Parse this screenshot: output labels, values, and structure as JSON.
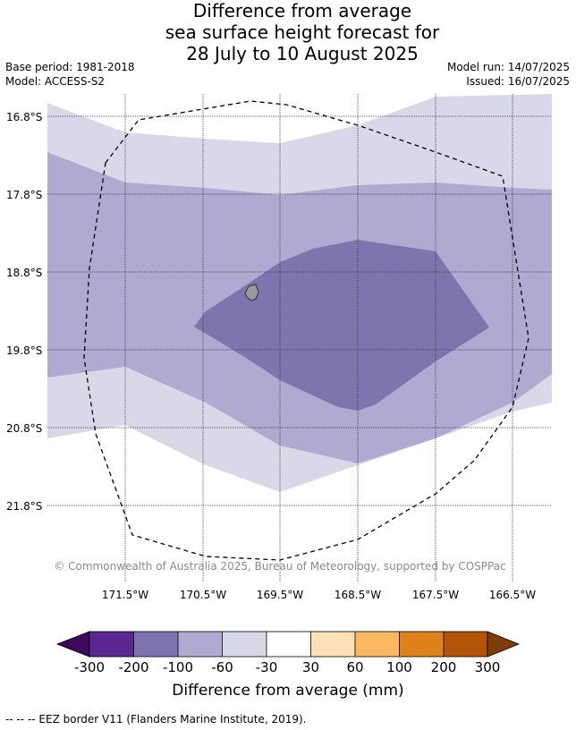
{
  "title": {
    "line1": "Difference from average",
    "line2": "sea surface height forecast for",
    "line3": "28 July to 10 August 2025"
  },
  "meta": {
    "base_period": "Base period: 1981-2018",
    "model": "Model: ACCESS-S2",
    "model_run": "Model run: 14/07/2025",
    "issued": "Issued: 16/07/2025"
  },
  "map": {
    "lat_ticks": [
      "16.8°S",
      "17.8°S",
      "18.8°S",
      "19.8°S",
      "20.8°S",
      "21.8°S"
    ],
    "lon_ticks": [
      "171.5°W",
      "170.5°W",
      "169.5°W",
      "168.5°W",
      "167.5°W",
      "166.5°W"
    ],
    "credit": "© Commonwealth of Australia 2025, Bureau of Meteorology, supported by COSPPac",
    "colors": {
      "band_minus30_0": "#d8d8e9",
      "band_minus60_minus30": "#b0a9d1",
      "band_minus100_minus60": "#7e74ae",
      "island": "#9a9a9a",
      "grid": "#333333"
    }
  },
  "colorbar": {
    "labels": [
      "-300",
      "-200",
      "-100",
      "-60",
      "-30",
      "30",
      "60",
      "100",
      "200",
      "300"
    ],
    "colors": [
      "#3d0a5e",
      "#5b2790",
      "#7e74ae",
      "#b0a9d1",
      "#d8d8e9",
      "#ffffff",
      "#fde0b6",
      "#fbb862",
      "#e0821a",
      "#b35509",
      "#7f3b08"
    ],
    "title": "Difference from average (mm)"
  },
  "footnote": "--  --  -- EEZ border V11 (Flanders Marine Institute, 2019)."
}
